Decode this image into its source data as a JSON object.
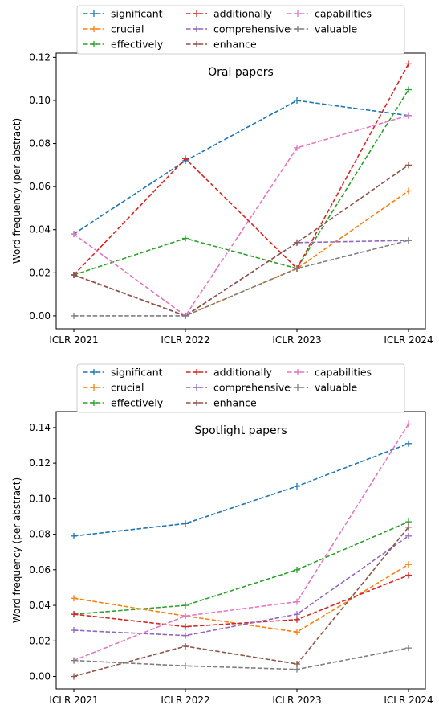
{
  "chart_data": [
    {
      "type": "line",
      "title": "Oral papers",
      "xlabel": "",
      "ylabel": "Word frequency (per abstract)",
      "categories": [
        "ICLR 2021",
        "ICLR 2022",
        "ICLR 2023",
        "ICLR 2024"
      ],
      "ylim": [
        -0.006,
        0.122
      ],
      "yticks": [
        0.0,
        0.02,
        0.04,
        0.06,
        0.08,
        0.1,
        0.12
      ],
      "ytick_labels": [
        "0.00",
        "0.02",
        "0.04",
        "0.06",
        "0.08",
        "0.10",
        "0.12"
      ],
      "legend_position": "top",
      "grid": false,
      "series": [
        {
          "name": "significant",
          "color": "#1f77b4",
          "values": [
            0.038,
            0.072,
            0.1,
            0.093
          ]
        },
        {
          "name": "crucial",
          "color": "#ff7f0e",
          "values": [
            0.019,
            0.0,
            0.022,
            0.058
          ]
        },
        {
          "name": "effectively",
          "color": "#2ca02c",
          "values": [
            0.019,
            0.036,
            0.022,
            0.105
          ]
        },
        {
          "name": "additionally",
          "color": "#d62728",
          "values": [
            0.019,
            0.073,
            0.022,
            0.117
          ]
        },
        {
          "name": "comprehensive",
          "color": "#9467bd",
          "values": [
            0.019,
            0.0,
            0.034,
            0.035
          ]
        },
        {
          "name": "enhance",
          "color": "#8c564b",
          "values": [
            0.019,
            0.0,
            0.034,
            0.07
          ]
        },
        {
          "name": "capabilities",
          "color": "#e377c2",
          "values": [
            0.038,
            0.0,
            0.078,
            0.093
          ]
        },
        {
          "name": "valuable",
          "color": "#7f7f7f",
          "values": [
            0.0,
            0.0,
            0.022,
            0.035
          ]
        }
      ]
    },
    {
      "type": "line",
      "title": "Spotlight papers",
      "xlabel": "",
      "ylabel": "Word frequency (per abstract)",
      "categories": [
        "ICLR 2021",
        "ICLR 2022",
        "ICLR 2023",
        "ICLR 2024"
      ],
      "ylim": [
        -0.007,
        0.149
      ],
      "yticks": [
        0.0,
        0.02,
        0.04,
        0.06,
        0.08,
        0.1,
        0.12,
        0.14
      ],
      "ytick_labels": [
        "0.00",
        "0.02",
        "0.04",
        "0.06",
        "0.08",
        "0.10",
        "0.12",
        "0.14"
      ],
      "legend_position": "top",
      "grid": false,
      "series": [
        {
          "name": "significant",
          "color": "#1f77b4",
          "values": [
            0.079,
            0.086,
            0.107,
            0.131
          ]
        },
        {
          "name": "crucial",
          "color": "#ff7f0e",
          "values": [
            0.044,
            0.034,
            0.025,
            0.063
          ]
        },
        {
          "name": "effectively",
          "color": "#2ca02c",
          "values": [
            0.035,
            0.04,
            0.06,
            0.087
          ]
        },
        {
          "name": "additionally",
          "color": "#d62728",
          "values": [
            0.035,
            0.028,
            0.032,
            0.057
          ]
        },
        {
          "name": "comprehensive",
          "color": "#9467bd",
          "values": [
            0.026,
            0.023,
            0.035,
            0.079
          ]
        },
        {
          "name": "enhance",
          "color": "#8c564b",
          "values": [
            0.0,
            0.017,
            0.007,
            0.084
          ]
        },
        {
          "name": "capabilities",
          "color": "#e377c2",
          "values": [
            0.009,
            0.034,
            0.042,
            0.142
          ]
        },
        {
          "name": "valuable",
          "color": "#7f7f7f",
          "values": [
            0.009,
            0.006,
            0.004,
            0.016
          ]
        }
      ]
    }
  ]
}
